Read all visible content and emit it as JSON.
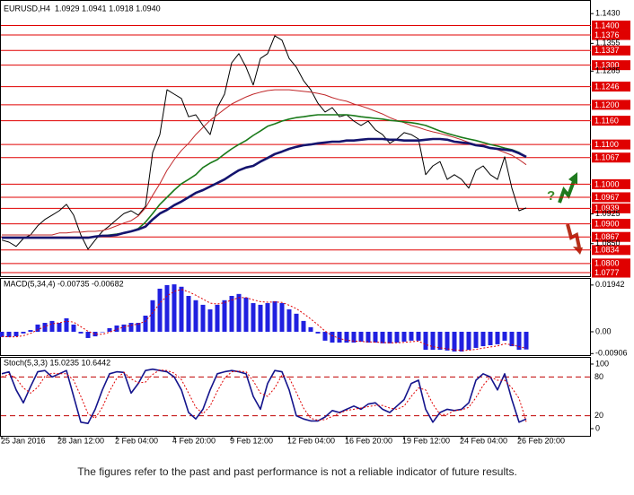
{
  "chart_data": [
    {
      "type": "line",
      "title": "EURUSD,H4  1.0929 1.0941 1.0918 1.0940",
      "categories": [
        "25 Jan 2016",
        null,
        null,
        null,
        null,
        null,
        null,
        null,
        "28 Jan 12:00",
        null,
        null,
        null,
        null,
        null,
        null,
        null,
        "2 Feb 04:00",
        null,
        null,
        null,
        null,
        null,
        null,
        null,
        "4 Feb 20:00",
        null,
        null,
        null,
        null,
        null,
        null,
        null,
        "9 Feb 12:00",
        null,
        null,
        null,
        null,
        null,
        null,
        null,
        "12 Feb 04:00",
        null,
        null,
        null,
        null,
        null,
        null,
        null,
        "16 Feb 20:00",
        null,
        null,
        null,
        null,
        null,
        null,
        null,
        "19 Feb 12:00",
        null,
        null,
        null,
        null,
        null,
        null,
        null,
        "24 Feb 04:00",
        null,
        null,
        null,
        null,
        null,
        null,
        null,
        "26 Feb 20:00",
        null
      ],
      "ylim": [
        1.0768,
        1.1453
      ],
      "yticks": [
        {
          "value": 1.143,
          "label": "1.1430"
        },
        1.1355,
        1.1285,
        1.0925,
        {
          "value": 1.085,
          "label": "1.0850"
        }
      ],
      "levels": [
        {
          "value": 1.14,
          "label": "1.1400"
        },
        1.1376,
        1.1337,
        {
          "value": 1.13,
          "label": "1.1300"
        },
        1.1246,
        {
          "value": 1.12,
          "label": "1.1200"
        },
        {
          "value": 1.116,
          "label": "1.1160"
        },
        {
          "value": 1.11,
          "label": "1.1100"
        },
        1.1067,
        {
          "value": 1.1,
          "label": "1.1000"
        },
        1.0967,
        1.0939,
        {
          "value": 1.09,
          "label": "1.0900"
        },
        1.0867,
        1.0834,
        {
          "value": 1.08,
          "label": "1.0800"
        },
        1.0777
      ],
      "level_style": "box",
      "level_color": "#e00000",
      "annotations": [
        "?"
      ],
      "series": [
        {
          "color": "#000000",
          "values": [
            1.0859,
            1.0854,
            1.0843,
            1.0863,
            1.0872,
            1.0895,
            1.0911,
            1.0922,
            1.0933,
            1.0949,
            1.0922,
            1.0872,
            1.0836,
            1.0859,
            1.0881,
            1.0895,
            1.0911,
            1.0926,
            1.0933,
            1.0922,
            1.0944,
            1.108,
            1.1125,
            1.1238,
            1.1227,
            1.1216,
            1.117,
            1.1175,
            1.1148,
            1.1125,
            1.1193,
            1.1227,
            1.1306,
            1.1329,
            1.1295,
            1.125,
            1.1317,
            1.1329,
            1.1374,
            1.1363,
            1.1317,
            1.1295,
            1.1261,
            1.1238,
            1.1204,
            1.1182,
            1.1193,
            1.117,
            1.1175,
            1.1159,
            1.1148,
            1.1159,
            1.1137,
            1.1125,
            1.1103,
            1.1114,
            1.113,
            1.1125,
            1.1114,
            1.1024,
            1.1046,
            1.1057,
            1.1012,
            1.1024,
            1.1012,
            1.099,
            1.1035,
            1.1046,
            1.1024,
            1.1012,
            1.1069,
            1.099,
            1.0933,
            1.094
          ]
        },
        {
          "color": "#c0282a",
          "values": [
            1.0872,
            1.0872,
            1.0872,
            1.0872,
            1.0872,
            1.0872,
            1.0872,
            1.0872,
            1.0877,
            1.0877,
            1.0879,
            1.0879,
            1.0881,
            1.0881,
            1.0883,
            1.0888,
            1.0895,
            1.0902,
            1.0908,
            1.092,
            1.094,
            1.0972,
            1.1001,
            1.1035,
            1.1062,
            1.1085,
            1.1103,
            1.1125,
            1.1143,
            1.1161,
            1.1175,
            1.1189,
            1.1202,
            1.1211,
            1.122,
            1.1227,
            1.1232,
            1.1236,
            1.1238,
            1.1238,
            1.1238,
            1.1236,
            1.1234,
            1.1232,
            1.1229,
            1.1225,
            1.1218,
            1.1213,
            1.1209,
            1.1202,
            1.1197,
            1.1191,
            1.1184,
            1.1177,
            1.1168,
            1.1161,
            1.1155,
            1.1148,
            1.1143,
            1.1137,
            1.1132,
            1.1128,
            1.1123,
            1.1118,
            1.1112,
            1.1105,
            1.11,
            1.1096,
            1.1091,
            1.1087,
            1.108,
            1.1073,
            1.1062,
            1.1049
          ]
        },
        {
          "color": "#1a7a1a",
          "weight": "medium",
          "values": [
            1.0865,
            1.0865,
            1.0865,
            1.0865,
            1.0865,
            1.0865,
            1.0865,
            1.0865,
            1.0865,
            1.0865,
            1.0865,
            1.0865,
            1.0865,
            1.0868,
            1.087,
            1.0872,
            1.0874,
            1.0877,
            1.0881,
            1.0888,
            1.0904,
            1.0926,
            1.0949,
            1.0967,
            1.0985,
            1.1001,
            1.1012,
            1.1024,
            1.1042,
            1.1053,
            1.1062,
            1.1076,
            1.1089,
            1.11,
            1.111,
            1.1123,
            1.1134,
            1.1146,
            1.1152,
            1.1159,
            1.1164,
            1.1168,
            1.117,
            1.1173,
            1.1175,
            1.1175,
            1.1175,
            1.1175,
            1.1175,
            1.1173,
            1.117,
            1.1168,
            1.1166,
            1.1164,
            1.1161,
            1.1159,
            1.1157,
            1.1155,
            1.1152,
            1.1148,
            1.1141,
            1.1134,
            1.1128,
            1.1123,
            1.1118,
            1.1114,
            1.111,
            1.1105,
            1.11,
            1.1096,
            1.1091,
            1.1087,
            1.108,
            1.1069
          ]
        },
        {
          "color": "#14146e",
          "weight": "bold",
          "values": [
            1.0865,
            1.0865,
            1.0865,
            1.0865,
            1.0865,
            1.0865,
            1.0865,
            1.0865,
            1.0865,
            1.0865,
            1.0865,
            1.0865,
            1.0865,
            1.0868,
            1.087,
            1.087,
            1.0872,
            1.0877,
            1.0881,
            1.0886,
            1.0893,
            1.0911,
            1.0926,
            1.0935,
            1.0947,
            1.0956,
            1.0967,
            1.0978,
            1.0985,
            1.0994,
            1.1003,
            1.1012,
            1.1024,
            1.1035,
            1.1042,
            1.1046,
            1.1057,
            1.1066,
            1.1076,
            1.1082,
            1.1089,
            1.1094,
            1.1098,
            1.11,
            1.1103,
            1.1105,
            1.1107,
            1.1107,
            1.111,
            1.111,
            1.1112,
            1.1114,
            1.1114,
            1.1114,
            1.1112,
            1.1112,
            1.111,
            1.111,
            1.111,
            1.1112,
            1.1114,
            1.1114,
            1.1112,
            1.1107,
            1.1105,
            1.1103,
            1.1098,
            1.1096,
            1.1091,
            1.1089,
            1.1087,
            1.1085,
            1.1078,
            1.1069
          ]
        }
      ]
    },
    {
      "type": "bar",
      "title": "MACD(5,34,4) -0.00735 -0.00682",
      "ylim": [
        -0.0097,
        0.0216
      ],
      "yticks": [
        0.01942,
        {
          "value": 0,
          "label": "0.00"
        },
        -0.00906
      ],
      "series": [
        {
          "color": "#2020e0",
          "values": [
            -0.0022,
            -0.0022,
            -0.0019,
            -0.0007,
            0.0007,
            0.003,
            0.0037,
            0.0045,
            0.0037,
            0.0056,
            0.003,
            -0.0007,
            -0.0026,
            -0.0019,
            0,
            0.0015,
            0.0026,
            0.003,
            0.0037,
            0.0037,
            0.0067,
            0.0131,
            0.0179,
            0.0194,
            0.0197,
            0.0187,
            0.0149,
            0.0131,
            0.0112,
            0.0093,
            0.0112,
            0.0131,
            0.0149,
            0.0157,
            0.0142,
            0.0119,
            0.0112,
            0.0119,
            0.0127,
            0.0119,
            0.0093,
            0.0075,
            0.0045,
            0.0019,
            -0.0007,
            -0.0037,
            -0.0045,
            -0.0045,
            -0.0045,
            -0.0045,
            -0.0041,
            -0.0045,
            -0.0045,
            -0.0048,
            -0.0048,
            -0.0045,
            -0.0041,
            -0.0037,
            -0.0037,
            -0.0075,
            -0.0075,
            -0.0075,
            -0.0078,
            -0.0082,
            -0.0082,
            -0.0075,
            -0.0067,
            -0.006,
            -0.0056,
            -0.0052,
            -0.0037,
            -0.006,
            -0.0075,
            -0.00735
          ]
        },
        {
          "type": "line",
          "color": "#e00000",
          "dash": true,
          "values": [
            -0.002,
            -0.0021,
            -0.0021,
            -0.0016,
            -0.0007,
            0.0008,
            0.0022,
            0.0033,
            0.0037,
            0.0044,
            0.004,
            0.0021,
            0.0002,
            -0.001,
            -0.001,
            -0.0002,
            0.001,
            0.002,
            0.0027,
            0.0032,
            0.0044,
            0.0079,
            0.0119,
            0.0149,
            0.0168,
            0.0176,
            0.0166,
            0.0152,
            0.0136,
            0.0119,
            0.0115,
            0.0121,
            0.0132,
            0.0142,
            0.0142,
            0.0133,
            0.0125,
            0.0123,
            0.0124,
            0.0122,
            0.011,
            0.0096,
            0.0076,
            0.0053,
            0.0029,
            0.0003,
            -0.0016,
            -0.0028,
            -0.0035,
            -0.0039,
            -0.004,
            -0.0042,
            -0.0043,
            -0.0045,
            -0.0046,
            -0.0046,
            -0.0044,
            -0.0041,
            -0.0039,
            -0.0053,
            -0.0062,
            -0.0067,
            -0.0071,
            -0.0075,
            -0.0078,
            -0.0077,
            -0.0073,
            -0.0068,
            -0.0063,
            -0.0059,
            -0.005,
            -0.0054,
            -0.0062,
            -0.00682
          ]
        }
      ]
    },
    {
      "type": "line",
      "title": "Stoch(5,3,3) 15.0235 10.6442",
      "ylim": [
        -11.1,
        108.3
      ],
      "yticks": [
        100,
        0
      ],
      "levels": [
        80,
        20
      ],
      "level_style": "dashed",
      "level_color": "#c00000",
      "series": [
        {
          "color": "#14148c",
          "weight": "medium",
          "values": [
            85,
            88,
            60,
            40,
            65,
            88,
            90,
            80,
            85,
            90,
            50,
            10,
            8,
            30,
            60,
            85,
            88,
            87,
            55,
            70,
            90,
            92,
            90,
            88,
            80,
            60,
            25,
            15,
            30,
            60,
            85,
            88,
            90,
            88,
            85,
            50,
            30,
            70,
            90,
            88,
            60,
            20,
            15,
            12,
            12,
            18,
            28,
            25,
            30,
            35,
            30,
            38,
            40,
            30,
            25,
            35,
            45,
            70,
            75,
            30,
            10,
            25,
            30,
            28,
            30,
            40,
            75,
            85,
            80,
            60,
            85,
            45,
            10,
            15.0235
          ]
        },
        {
          "color": "#e00000",
          "dash": true,
          "values": [
            80,
            84,
            78,
            63,
            55,
            64,
            81,
            86,
            85,
            85,
            75,
            50,
            23,
            16,
            33,
            58,
            78,
            87,
            77,
            71,
            72,
            84,
            91,
            90,
            86,
            76,
            55,
            33,
            23,
            35,
            58,
            78,
            88,
            89,
            88,
            74,
            55,
            50,
            63,
            83,
            79,
            56,
            32,
            16,
            13,
            14,
            19,
            24,
            28,
            30,
            32,
            34,
            36,
            36,
            32,
            30,
            35,
            50,
            63,
            60,
            38,
            22,
            22,
            28,
            29,
            33,
            48,
            67,
            80,
            75,
            75,
            63,
            47,
            10.6442
          ]
        }
      ]
    }
  ],
  "footer": "The figures refer to the past and past performance is not a reliable indicator of future results."
}
